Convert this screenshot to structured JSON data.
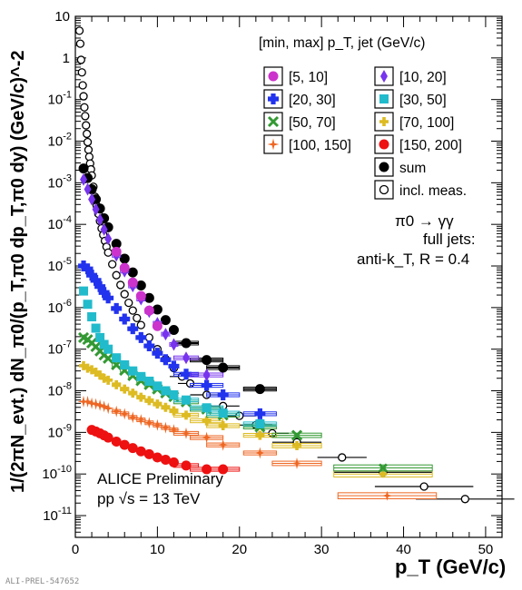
{
  "footer_id": "ALI-PREL-547652",
  "chart_data": {
    "type": "scatter",
    "title": "",
    "xlabel": "p_T (GeV/c)",
    "ylabel": "1/(2πN_evt.) dN_π0/(p_T,π0 dp_T,π0 dy)  (GeV/c)^-2",
    "xlim": [
      0,
      52
    ],
    "ylim": [
      3e-12,
      10
    ],
    "yscale": "log",
    "x_ticks": [
      "0",
      "10",
      "20",
      "30",
      "40",
      "50"
    ],
    "y_ticks": [
      "10^-11",
      "10^-10",
      "10^-9",
      "10^-8",
      "10^-7",
      "10^-6",
      "10^-5",
      "10^-4",
      "10^-3",
      "10^-2",
      "10^-1",
      "1",
      "10"
    ],
    "legend_title": "[min, max] p_T, jet (GeV/c)",
    "legend_position": "top-right",
    "annotations": {
      "decay": "π0 → γγ",
      "jets": "full jets:",
      "algo": "anti-k_T, R = 0.4",
      "experiment": "ALICE Preliminary",
      "system": "pp √s = 13 TeV"
    },
    "series": [
      {
        "name": "[5, 10]",
        "color": "#cc33cc",
        "marker": "circle",
        "points": [
          [
            5,
            2.2e-05
          ],
          [
            6,
            9e-06
          ],
          [
            7,
            4e-06
          ],
          [
            8,
            1.9e-06
          ],
          [
            9,
            8.5e-07
          ],
          [
            10,
            3.6e-07
          ]
        ]
      },
      {
        "name": "[10, 20]",
        "color": "#7733ee",
        "marker": "diamond",
        "points": [
          [
            1,
            0.0012
          ],
          [
            1.5,
            0.0007
          ],
          [
            2,
            0.0004
          ],
          [
            2.5,
            0.00023
          ],
          [
            3,
            0.00013
          ],
          [
            3.5,
            7.5e-05
          ],
          [
            4,
            4.5e-05
          ],
          [
            5,
            1.8e-05
          ],
          [
            6,
            7.5e-06
          ],
          [
            7,
            3.3e-06
          ],
          [
            8,
            1.6e-06
          ],
          [
            9,
            8e-07
          ],
          [
            10,
            4.2e-07
          ],
          [
            11,
            2.3e-07
          ],
          [
            12,
            1.3e-07
          ],
          [
            13.5,
            6.2e-08
          ],
          [
            16,
            2.4e-08
          ]
        ]
      },
      {
        "name": "[20, 30]",
        "color": "#2233ee",
        "marker": "cross",
        "points": [
          [
            1,
            1e-05
          ],
          [
            1.5,
            8.5e-06
          ],
          [
            2,
            6e-06
          ],
          [
            2.5,
            4.5e-06
          ],
          [
            3,
            3.2e-06
          ],
          [
            3.5,
            2.3e-06
          ],
          [
            4,
            1.7e-06
          ],
          [
            5,
            9.5e-07
          ],
          [
            6,
            5.3e-07
          ],
          [
            7,
            3.1e-07
          ],
          [
            8,
            1.9e-07
          ],
          [
            9,
            1.2e-07
          ],
          [
            10,
            8e-08
          ],
          [
            11,
            5.6e-08
          ],
          [
            12,
            3.9e-08
          ],
          [
            13.5,
            2.5e-08
          ],
          [
            16,
            1.35e-08
          ],
          [
            18,
            8e-09
          ],
          [
            22.5,
            2.8e-09
          ]
        ]
      },
      {
        "name": "[30, 50]",
        "color": "#22bbcc",
        "marker": "square",
        "points": [
          [
            1,
            2.5e-06
          ],
          [
            1.5,
            1.2e-06
          ],
          [
            2,
            6e-07
          ],
          [
            2.5,
            3.2e-07
          ],
          [
            3,
            1.9e-07
          ],
          [
            3.5,
            1.3e-07
          ],
          [
            4,
            1e-07
          ],
          [
            5,
            6.2e-08
          ],
          [
            6,
            4.2e-08
          ],
          [
            7,
            3e-08
          ],
          [
            8,
            2.2e-08
          ],
          [
            9,
            1.7e-08
          ],
          [
            10,
            1.3e-08
          ],
          [
            11,
            1e-08
          ],
          [
            12,
            8e-09
          ],
          [
            13.5,
            6e-09
          ],
          [
            16,
            3.9e-09
          ],
          [
            18,
            2.9e-09
          ],
          [
            22.5,
            1.6e-09
          ]
        ]
      },
      {
        "name": "[50, 70]",
        "color": "#339933",
        "marker": "x",
        "points": [
          [
            1,
            1.9e-07
          ],
          [
            1.5,
            1.7e-07
          ],
          [
            2,
            1.4e-07
          ],
          [
            2.5,
            1.15e-07
          ],
          [
            3,
            9e-08
          ],
          [
            3.5,
            7.2e-08
          ],
          [
            4,
            6e-08
          ],
          [
            5,
            4.2e-08
          ],
          [
            6,
            3.1e-08
          ],
          [
            7,
            2.3e-08
          ],
          [
            8,
            1.75e-08
          ],
          [
            9,
            1.4e-08
          ],
          [
            10,
            1.1e-08
          ],
          [
            11,
            8.8e-09
          ],
          [
            12,
            7.2e-09
          ],
          [
            13.5,
            5.4e-09
          ],
          [
            16,
            3.6e-09
          ],
          [
            18,
            2.6e-09
          ],
          [
            22.5,
            1.35e-09
          ],
          [
            27,
            8.5e-10
          ],
          [
            37.5,
            1.4e-10
          ]
        ]
      },
      {
        "name": "[70, 100]",
        "color": "#ddbb22",
        "marker": "plus",
        "points": [
          [
            1,
            4e-08
          ],
          [
            1.5,
            3.5e-08
          ],
          [
            2,
            3.2e-08
          ],
          [
            2.5,
            2.8e-08
          ],
          [
            3,
            2.4e-08
          ],
          [
            3.5,
            2e-08
          ],
          [
            4,
            1.8e-08
          ],
          [
            5,
            1.4e-08
          ],
          [
            6,
            1.1e-08
          ],
          [
            7,
            8.8e-09
          ],
          [
            8,
            7e-09
          ],
          [
            9,
            5.8e-09
          ],
          [
            10,
            4.8e-09
          ],
          [
            11,
            4e-09
          ],
          [
            12,
            3.3e-09
          ],
          [
            13.5,
            2.6e-09
          ],
          [
            16,
            1.9e-09
          ],
          [
            18,
            1.45e-09
          ],
          [
            22.5,
            8.5e-10
          ],
          [
            27,
            4.8e-10
          ],
          [
            37.5,
            1e-10
          ]
        ]
      },
      {
        "name": "[100, 150]",
        "color": "#ee6622",
        "marker": "star",
        "points": [
          [
            1,
            5.5e-09
          ],
          [
            1.5,
            5.5e-09
          ],
          [
            2,
            5e-09
          ],
          [
            2.5,
            4.8e-09
          ],
          [
            3,
            4.5e-09
          ],
          [
            3.5,
            4.2e-09
          ],
          [
            4,
            3.8e-09
          ],
          [
            5,
            3.2e-09
          ],
          [
            6,
            2.8e-09
          ],
          [
            7,
            2.3e-09
          ],
          [
            8,
            2e-09
          ],
          [
            9,
            1.7e-09
          ],
          [
            10,
            1.5e-09
          ],
          [
            11,
            1.3e-09
          ],
          [
            12,
            1.15e-09
          ],
          [
            13.5,
            9.5e-10
          ],
          [
            16,
            7.5e-10
          ],
          [
            18,
            5e-10
          ],
          [
            22.5,
            3.2e-10
          ],
          [
            27,
            1.8e-10
          ],
          [
            38,
            3e-11
          ]
        ]
      },
      {
        "name": "[150, 200]",
        "color": "#ee1111",
        "marker": "circle",
        "points": [
          [
            2,
            1.15e-09
          ],
          [
            2.5,
            1.05e-09
          ],
          [
            3,
            9.5e-10
          ],
          [
            3.5,
            8.5e-10
          ],
          [
            4,
            7.5e-10
          ],
          [
            5,
            6e-10
          ],
          [
            6,
            5e-10
          ],
          [
            7,
            4.2e-10
          ],
          [
            8,
            3.5e-10
          ],
          [
            9,
            3e-10
          ],
          [
            10,
            2.5e-10
          ],
          [
            11,
            2.2e-10
          ],
          [
            12,
            1.9e-10
          ],
          [
            13.5,
            1.6e-10
          ],
          [
            16,
            1.3e-10
          ],
          [
            18,
            1.3e-10
          ]
        ]
      },
      {
        "name": "sum",
        "color": "#000000",
        "marker": "circle",
        "points": [
          [
            1,
            0.0022
          ],
          [
            1.5,
            0.0013
          ],
          [
            2,
            0.0007
          ],
          [
            2.5,
            0.0004
          ],
          [
            3,
            0.00024
          ],
          [
            3.5,
            0.00014
          ],
          [
            4,
            8.5e-05
          ],
          [
            5,
            3.4e-05
          ],
          [
            6,
            1.5e-05
          ],
          [
            7,
            7e-06
          ],
          [
            8,
            3.4e-06
          ],
          [
            9,
            1.7e-06
          ],
          [
            10,
            9e-07
          ],
          [
            11,
            5e-07
          ],
          [
            12,
            2.9e-07
          ],
          [
            13.5,
            1.4e-07
          ],
          [
            16,
            5.5e-08
          ],
          [
            18,
            3.6e-08
          ],
          [
            22.5,
            1.1e-08
          ]
        ]
      },
      {
        "name": "incl. meas.",
        "color": "#000000",
        "marker": "open-circle",
        "points": [
          [
            0.5,
            4.5
          ],
          [
            0.6,
            2.2
          ],
          [
            0.7,
            0.9
          ],
          [
            0.8,
            0.45
          ],
          [
            0.9,
            0.22
          ],
          [
            1.0,
            0.12
          ],
          [
            1.1,
            0.065
          ],
          [
            1.2,
            0.04
          ],
          [
            1.3,
            0.024
          ],
          [
            1.4,
            0.015
          ],
          [
            1.5,
            0.0095
          ],
          [
            1.6,
            0.0062
          ],
          [
            1.7,
            0.0042
          ],
          [
            1.8,
            0.0029
          ],
          [
            1.9,
            0.0021
          ],
          [
            2.0,
            0.0015
          ],
          [
            2.2,
            0.0008
          ],
          [
            2.4,
            0.00046
          ],
          [
            2.6,
            0.00028
          ],
          [
            2.8,
            0.00018
          ],
          [
            3.0,
            0.00012
          ],
          [
            3.2,
            8e-05
          ],
          [
            3.4,
            5.6e-05
          ],
          [
            3.6,
            4e-05
          ],
          [
            3.8,
            2.9e-05
          ],
          [
            4.0,
            2.1e-05
          ],
          [
            4.5,
            1.1e-05
          ],
          [
            5.0,
            6e-06
          ],
          [
            5.5,
            3.5e-06
          ],
          [
            6.0,
            2.1e-06
          ],
          [
            6.5,
            1.3e-06
          ],
          [
            7.0,
            8.5e-07
          ],
          [
            7.5,
            5.6e-07
          ],
          [
            8.0,
            3.8e-07
          ],
          [
            9,
            1.9e-07
          ],
          [
            10,
            1e-07
          ],
          [
            11,
            5.8e-08
          ],
          [
            12,
            3.5e-08
          ],
          [
            13,
            2.2e-08
          ],
          [
            14,
            1.5e-08
          ],
          [
            16,
            8e-09
          ],
          [
            18,
            4.3e-09
          ],
          [
            20,
            2.5e-09
          ],
          [
            22,
            1.5e-09
          ],
          [
            24,
            9.5e-10
          ],
          [
            27,
            5.8e-10
          ],
          [
            32.5,
            2.5e-10
          ],
          [
            37.5,
            1.1e-10
          ],
          [
            42.5,
            5e-11
          ],
          [
            47.5,
            2.5e-11
          ]
        ]
      }
    ]
  }
}
